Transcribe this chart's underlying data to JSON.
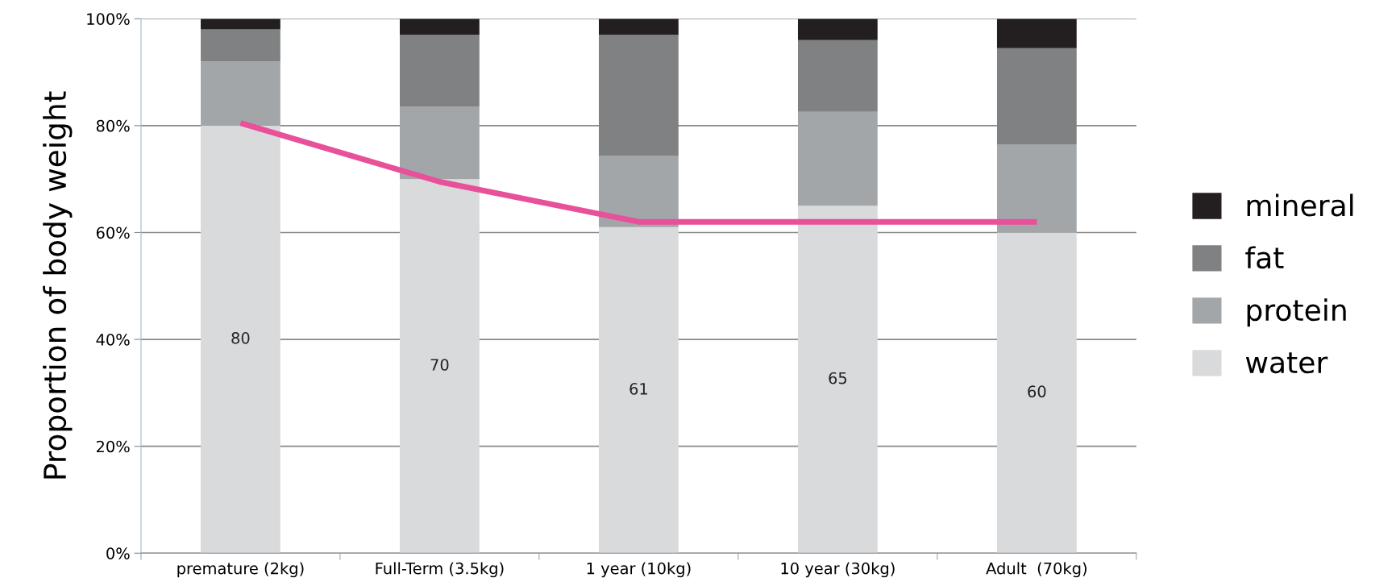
{
  "chart_data": {
    "type": "bar",
    "stacked": true,
    "ylabel": "Proportion of body weight",
    "categories": [
      "premature (2kg)",
      "Full-Term (3.5kg)",
      "1 year (10kg)",
      "10 year (30kg)",
      "Adult  (70kg)"
    ],
    "series": [
      {
        "name": "water",
        "color": "#d9dadc",
        "values": [
          80,
          70,
          61,
          65,
          60
        ],
        "value_labels": [
          "80",
          "70",
          "61",
          "65",
          "60"
        ]
      },
      {
        "name": "protein",
        "color": "#a3a6a9",
        "values": [
          12,
          13.6,
          13.4,
          17.6,
          16.5
        ]
      },
      {
        "name": "fat",
        "color": "#808183",
        "values": [
          6,
          13.4,
          22.6,
          13.4,
          18
        ]
      },
      {
        "name": "mineral",
        "color": "#231f20",
        "values": [
          2,
          3,
          3,
          4,
          5.5
        ]
      },
      {
        "type": "line",
        "color": "#e8509a",
        "values": [
          80.5,
          69.5,
          62,
          62,
          62
        ]
      }
    ],
    "ylim": [
      0,
      100
    ],
    "yticks": [
      {
        "value": 0,
        "label": "0%"
      },
      {
        "value": 20,
        "label": "20%"
      },
      {
        "value": 40,
        "label": "40%"
      },
      {
        "value": 60,
        "label": "60%"
      },
      {
        "value": 80,
        "label": "80%"
      },
      {
        "value": 100,
        "label": "100%"
      }
    ],
    "grid": "y",
    "legend": "right"
  }
}
